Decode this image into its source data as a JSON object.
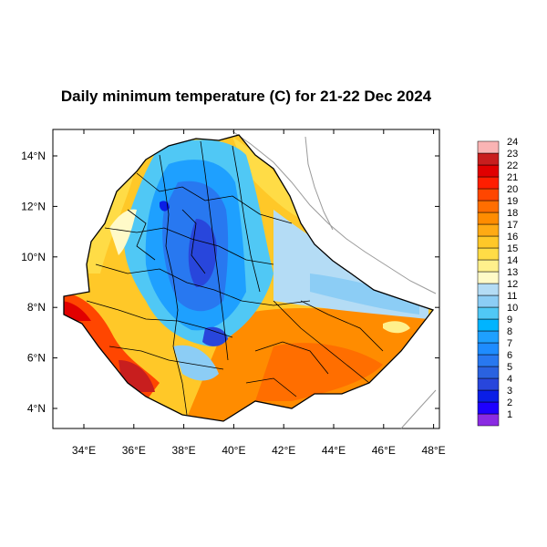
{
  "title": "Daily minimum temperature (C) for 21-22 Dec 2024",
  "axes": {
    "x_ticks": [
      {
        "value": 34,
        "label": "34°E"
      },
      {
        "value": 36,
        "label": "36°E"
      },
      {
        "value": 38,
        "label": "38°E"
      },
      {
        "value": 40,
        "label": "40°E"
      },
      {
        "value": 42,
        "label": "42°E"
      },
      {
        "value": 44,
        "label": "44°E"
      },
      {
        "value": 46,
        "label": "46°E"
      },
      {
        "value": 48,
        "label": "48°E"
      }
    ],
    "y_ticks": [
      {
        "value": 4,
        "label": "4°N"
      },
      {
        "value": 6,
        "label": "6°N"
      },
      {
        "value": 8,
        "label": "8°N"
      },
      {
        "value": 10,
        "label": "10°N"
      },
      {
        "value": 12,
        "label": "12°N"
      },
      {
        "value": 14,
        "label": "14°N"
      }
    ],
    "xlim": [
      33,
      48.2
    ],
    "ylim": [
      3.2,
      15
    ]
  },
  "colorbar": [
    {
      "label": "1",
      "color": "#8a2be2"
    },
    {
      "label": "2",
      "color": "#1e00ff"
    },
    {
      "label": "3",
      "color": "#0a1ee6"
    },
    {
      "label": "4",
      "color": "#2846dc"
    },
    {
      "label": "5",
      "color": "#2a62e0"
    },
    {
      "label": "6",
      "color": "#2878f0"
    },
    {
      "label": "7",
      "color": "#1e8cff"
    },
    {
      "label": "8",
      "color": "#1ea0ff"
    },
    {
      "label": "9",
      "color": "#00b4ff"
    },
    {
      "label": "10",
      "color": "#50c8f5"
    },
    {
      "label": "11",
      "color": "#8ccdf5"
    },
    {
      "label": "12",
      "color": "#b4dcf5"
    },
    {
      "label": "13",
      "color": "#fffac8"
    },
    {
      "label": "14",
      "color": "#fff08c"
    },
    {
      "label": "15",
      "color": "#ffdc46"
    },
    {
      "label": "16",
      "color": "#ffc828"
    },
    {
      "label": "17",
      "color": "#ffaa14"
    },
    {
      "label": "18",
      "color": "#ff8c00"
    },
    {
      "label": "19",
      "color": "#ff6e00"
    },
    {
      "label": "20",
      "color": "#ff4600"
    },
    {
      "label": "21",
      "color": "#ff1e00"
    },
    {
      "label": "22",
      "color": "#e10000"
    },
    {
      "label": "23",
      "color": "#c81e1e"
    },
    {
      "label": "24",
      "color": "#fab4b4"
    }
  ]
}
